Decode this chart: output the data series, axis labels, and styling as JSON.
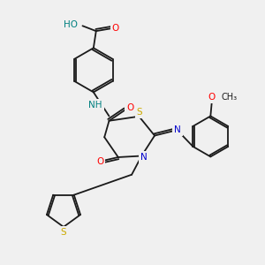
{
  "bg_color": "#f0f0f0",
  "bond_color": "#1a1a1a",
  "atom_colors": {
    "O": "#ff0000",
    "N": "#0000cc",
    "S": "#ccaa00",
    "C": "#1a1a1a",
    "H": "#008080"
  },
  "lw": 1.3,
  "fs": 7.5,
  "xlim": [
    0,
    10
  ],
  "ylim": [
    0,
    10
  ]
}
